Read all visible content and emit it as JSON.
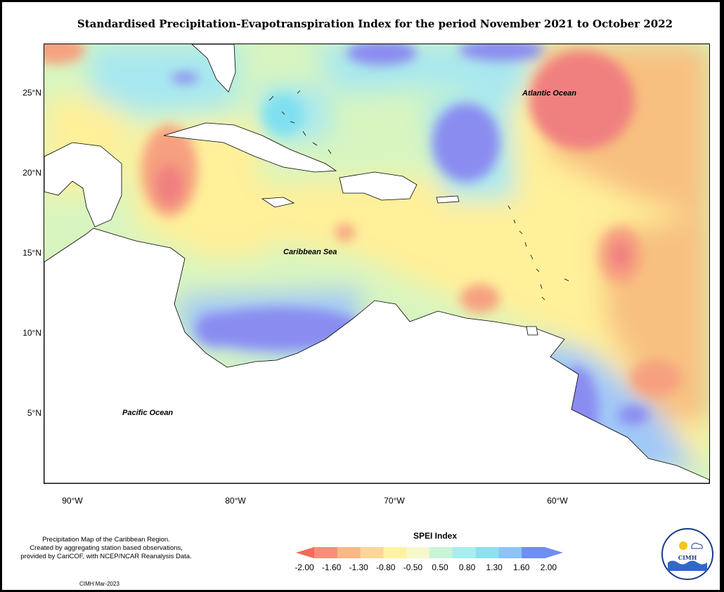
{
  "title": "Standardised Precipitation-Evapotranspiration Index for the period November 2021 to October 2022",
  "labels": {
    "atlantic": "Atlantic Ocean",
    "caribbean": "Caribbean Sea",
    "pacific": "Pacific Ocean"
  },
  "axes": {
    "lat_ticks": [
      "25°N",
      "20°N",
      "15°N",
      "10°N",
      "5°N"
    ],
    "lon_ticks": [
      "90°W",
      "80°W",
      "70°W",
      "60°W"
    ]
  },
  "footnote": [
    "Precipitation Map of the Caribbean Region.",
    "Created by aggregating station based observations,",
    "provided by CariCOF, with NCEP/NCAR Reanalysis Data."
  ],
  "credit": "CIMH Mar-2023",
  "logo_text": "CIMH",
  "legend": {
    "title": "SPEI Index",
    "ticks": [
      "-2.00",
      "-1.60",
      "-1.30",
      "-0.80",
      "-0.50",
      "0.50",
      "0.80",
      "1.30",
      "1.60",
      "2.00"
    ],
    "colors": [
      "#f4907a",
      "#f8b888",
      "#fbd59a",
      "#fff2a0",
      "#f6f8cc",
      "#c8f4d8",
      "#a8eef0",
      "#8ee0f0",
      "#8cc4f6",
      "#6f8ef0"
    ]
  }
}
